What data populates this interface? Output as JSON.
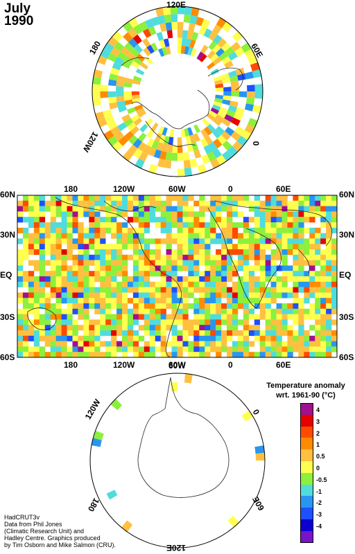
{
  "title": {
    "month": "July",
    "year": "1990"
  },
  "north_pole_labels": {
    "top": "120E",
    "upper_left": "180",
    "upper_right": "60E",
    "lower_left": "120W",
    "right": "0"
  },
  "south_pole_labels": {
    "upper_left": "120W",
    "top": "60W",
    "right": "0",
    "lower_left": "180",
    "lower_right": "60E",
    "bottom": "120E"
  },
  "map_axes": {
    "top_ticks": [
      "180",
      "120W",
      "60W",
      "0",
      "60E"
    ],
    "bottom_ticks": [
      "180",
      "120W",
      "60W",
      "0",
      "60E"
    ],
    "left_ticks": [
      "60N",
      "30N",
      "EQ",
      "30S",
      "60S"
    ],
    "right_ticks": [
      "60N",
      "30N",
      "EQ",
      "30S",
      "60S"
    ]
  },
  "legend": {
    "title_line1": "Temperature anomaly",
    "title_line2": "wrt. 1961-90  (°C)",
    "levels": [
      {
        "label": "4",
        "color": "#a0108f"
      },
      {
        "label": "3",
        "color": "#e60000"
      },
      {
        "label": "2",
        "color": "#ff4a00"
      },
      {
        "label": "1",
        "color": "#ff8c00"
      },
      {
        "label": "0.5",
        "color": "#ffc040"
      },
      {
        "label": "0",
        "color": "#ffff50"
      },
      {
        "label": "-0.5",
        "color": "#8cf03c"
      },
      {
        "label": "-1",
        "color": "#50dcdc"
      },
      {
        "label": "-2",
        "color": "#2896f0"
      },
      {
        "label": "-3",
        "color": "#1e50ff"
      },
      {
        "label": "-4",
        "color": "#0a00d2"
      },
      {
        "label": "",
        "color": "#7814c8"
      }
    ]
  },
  "credits": [
    "HadCRUT3v",
    "Data from Phil Jones",
    "(Climatic Research Unit) and",
    "Hadley Centre.  Graphics produced",
    "by Tim Osborn and Mike Salmon (CRU)."
  ]
}
